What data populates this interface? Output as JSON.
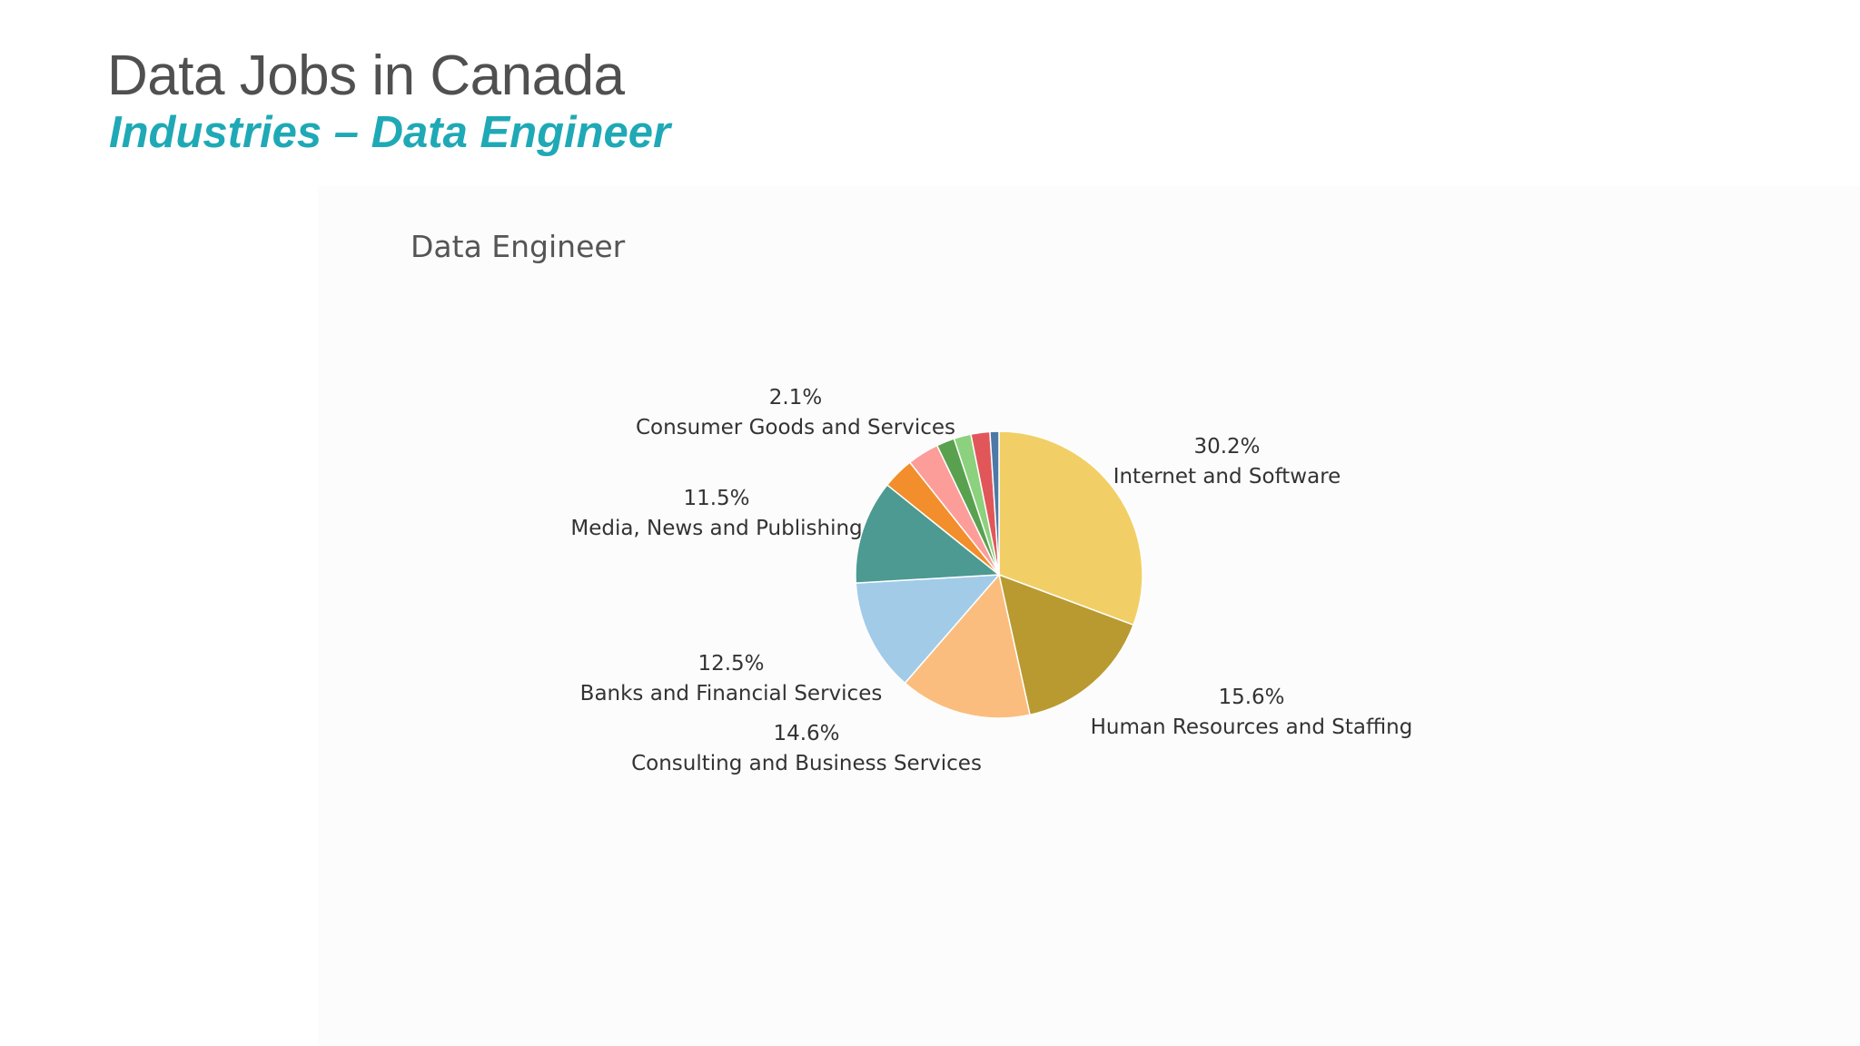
{
  "slide": {
    "title": "Data Jobs in Canada",
    "subtitle": "Industries – Data Engineer"
  },
  "colors": {
    "title": "#505050",
    "subtitle": "#1fa9b6"
  },
  "chart_data": {
    "type": "pie",
    "title": "Data Engineer",
    "start": "12 o'clock",
    "direction": "clockwise",
    "slices": [
      {
        "label": "Internet and Software",
        "value": 30.2,
        "value_text": "30.2%",
        "color": "#f2cf66"
      },
      {
        "label": "Human Resources and Staffing",
        "value": 15.6,
        "value_text": "15.6%",
        "color": "#b89a30"
      },
      {
        "label": "Consulting and Business Services",
        "value": 14.6,
        "value_text": "14.6%",
        "color": "#fbbd7e"
      },
      {
        "label": "Banks and Financial Services",
        "value": 12.5,
        "value_text": "12.5%",
        "color": "#a2cbe8"
      },
      {
        "label": "Media, News and Publishing",
        "value": 11.5,
        "value_text": "11.5%",
        "color": "#4c9a92"
      },
      {
        "label": "",
        "value": 3.5,
        "value_text": "",
        "color": "#f28e2b"
      },
      {
        "label": "",
        "value": 3.5,
        "value_text": "",
        "color": "#fc9d9a"
      },
      {
        "label": "",
        "value": 2.0,
        "value_text": "",
        "color": "#59a14f"
      },
      {
        "label": "",
        "value": 1.9,
        "value_text": "",
        "color": "#8cd17d"
      },
      {
        "label": "Consumer Goods and Services",
        "value": 2.1,
        "value_text": "2.1%",
        "color": "#e15759"
      },
      {
        "label": "",
        "value": 1.0,
        "value_text": "",
        "color": "#4e79a7"
      }
    ]
  }
}
